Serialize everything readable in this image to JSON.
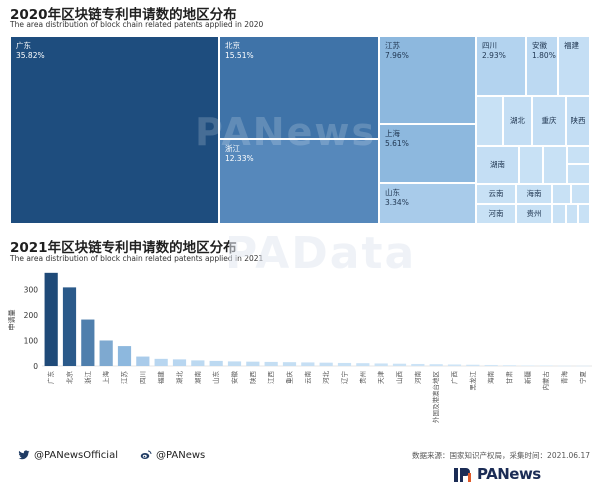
{
  "chart_data": [
    {
      "type": "treemap",
      "title": "2020年区块链专利申请数的地区分布",
      "subtitle": "The area distribution of block chain related patents applied in 2020",
      "items": [
        {
          "name": "广东",
          "pct_label": "35.82%",
          "value": 35.82,
          "color": "#1e4d7e"
        },
        {
          "name": "北京",
          "pct_label": "15.51%",
          "value": 15.51,
          "color": "#3f73a8"
        },
        {
          "name": "浙江",
          "pct_label": "12.33%",
          "value": 12.33,
          "color": "#5688bb"
        },
        {
          "name": "江苏",
          "pct_label": "7.96%",
          "value": 7.96,
          "color": "#8db8de"
        },
        {
          "name": "上海",
          "pct_label": "5.61%",
          "value": 5.61,
          "color": "#8db8de"
        },
        {
          "name": "山东",
          "pct_label": "3.34%",
          "value": 3.34,
          "color": "#a8cbea"
        },
        {
          "name": "四川",
          "pct_label": "2.93%",
          "value": 2.93,
          "color": "#b3d3ef"
        },
        {
          "name": "安徽",
          "pct_label": "1.80%",
          "value": 1.8,
          "color": "#bcd9f2"
        },
        {
          "name": "福建",
          "pct_label": "",
          "color": "#c4def4"
        },
        {
          "name": "湖北",
          "pct_label": "",
          "color": "#c4def4"
        },
        {
          "name": "重庆",
          "pct_label": "",
          "color": "#c4def4"
        },
        {
          "name": "陕西",
          "pct_label": "",
          "color": "#c4def4"
        },
        {
          "name": "湖南",
          "pct_label": "",
          "color": "#c4def4"
        },
        {
          "name": "云南",
          "pct_label": "",
          "color": "#c8e1f5"
        },
        {
          "name": "海南",
          "pct_label": "",
          "color": "#c8e1f5"
        },
        {
          "name": "河南",
          "pct_label": "",
          "color": "#c8e1f5"
        },
        {
          "name": "贵州",
          "pct_label": "",
          "color": "#c8e1f5"
        },
        {
          "name": "",
          "pct_label": "",
          "color": "#c8e1f5"
        },
        {
          "name": "",
          "pct_label": "",
          "color": "#c8e1f5"
        },
        {
          "name": "",
          "pct_label": "",
          "color": "#c8e1f5"
        },
        {
          "name": "",
          "pct_label": "",
          "color": "#c8e1f5"
        },
        {
          "name": "",
          "pct_label": "",
          "color": "#c8e1f5"
        },
        {
          "name": "",
          "pct_label": "",
          "color": "#c8e1f5"
        },
        {
          "name": "",
          "pct_label": "",
          "color": "#c8e1f5"
        },
        {
          "name": "",
          "pct_label": "",
          "color": "#c8e1f5"
        },
        {
          "name": "",
          "pct_label": "",
          "color": "#c8e1f5"
        },
        {
          "name": "",
          "pct_label": "",
          "color": "#c8e1f5"
        }
      ]
    },
    {
      "type": "bar",
      "title": "2021年区块链专利申请数的地区分布",
      "subtitle": "The area distribution of block chain related patents applied in 2021",
      "ylabel": "申请量",
      "ylim": [
        0,
        380
      ],
      "yticks": [
        0,
        100,
        200,
        300
      ],
      "grid": false,
      "categories": [
        "广东",
        "北京",
        "浙江",
        "上海",
        "江苏",
        "四川",
        "福建",
        "湖北",
        "湖南",
        "山东",
        "安徽",
        "陕西",
        "江西",
        "重庆",
        "云南",
        "河北",
        "辽宁",
        "贵州",
        "天津",
        "山西",
        "河南",
        "外国及港澳台地区",
        "广西",
        "黑龙江",
        "海南",
        "甘肃",
        "新疆",
        "内蒙古",
        "青海",
        "宁夏"
      ],
      "values": [
        365,
        308,
        182,
        100,
        78,
        37,
        28,
        26,
        22,
        20,
        18,
        17,
        16,
        15,
        14,
        13,
        12,
        11,
        10,
        9,
        8,
        7,
        6,
        5,
        4,
        3,
        2,
        2,
        1,
        1
      ],
      "bar_colors": [
        "#1f4a78",
        "#2b5a8a",
        "#4f7fad",
        "#7ea9d0",
        "#8db8de",
        "#a9cbea",
        "#b8d6f0",
        "#b8d6f0",
        "#bcd9f1",
        "#bcd9f1",
        "#c1dcf2",
        "#c1dcf2",
        "#c4def3",
        "#c4def3",
        "#c6dff4",
        "#c6dff4",
        "#c8e1f5",
        "#c8e1f5",
        "#cae2f5",
        "#cae2f5",
        "#cce3f6",
        "#cce3f6",
        "#cee4f6",
        "#cee4f6",
        "#d0e6f7",
        "#d0e6f7",
        "#d2e7f7",
        "#d2e7f7",
        "#d4e8f8",
        "#d4e8f8"
      ]
    }
  ],
  "footer": {
    "twitter_handle": "@PANewsOfficial",
    "weibo_handle": "@PANews",
    "source": "数据来源：国家知识产权局，采集时间：2021.06.17",
    "logo_text": "PANews"
  },
  "watermarks": {
    "top": "PANews",
    "middle": "PAData"
  },
  "icons": {
    "twitter": "twitter-icon",
    "weibo": "weibo-icon",
    "logo": "panews-logo-icon"
  }
}
